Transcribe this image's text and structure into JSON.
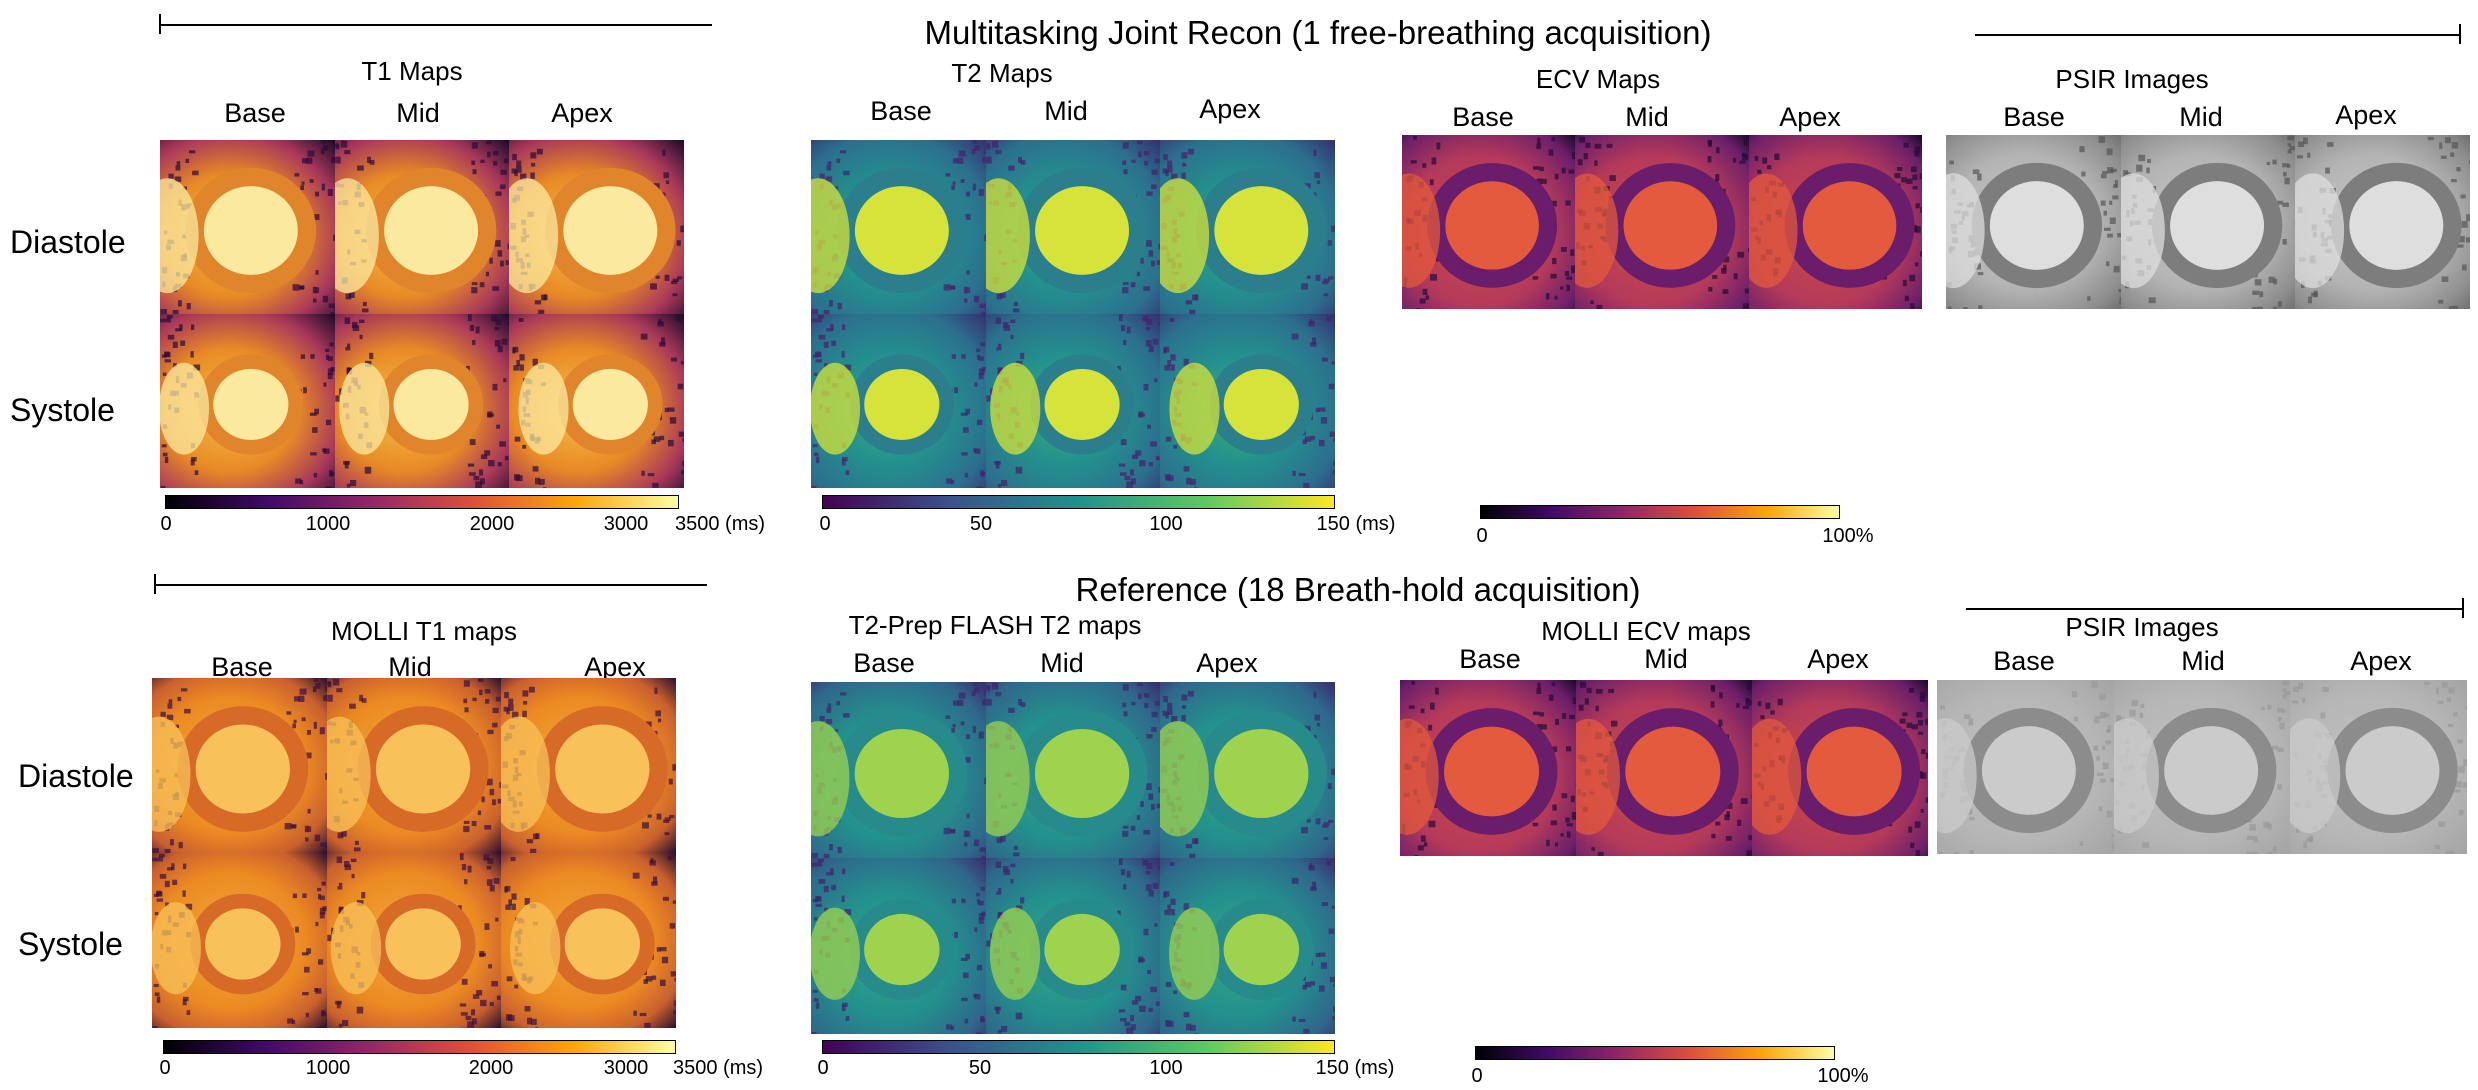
{
  "titles": {
    "top": "Multitasking Joint Recon (1 free-breathing acquisition)",
    "bottom": "Reference (18 Breath-hold acquisition)"
  },
  "panels": {
    "t1": "T1 Maps",
    "t2": "T2 Maps",
    "ecv": "ECV Maps",
    "psir_top": "PSIR Images",
    "molli_t1": "MOLLI T1 maps",
    "flash_t2": "T2-Prep FLASH T2 maps",
    "molli_ecv": "MOLLI ECV maps",
    "psir_bottom": "PSIR Images"
  },
  "columns": {
    "base": "Base",
    "mid": "Mid",
    "apex": "Apex"
  },
  "rows": {
    "diastole": "Diastole",
    "systole": "Systole"
  },
  "colorbars": {
    "t1": {
      "ticks": [
        "0",
        "1000",
        "2000",
        "3000",
        "3500 (ms)"
      ],
      "colormap": "inferno"
    },
    "t2": {
      "ticks": [
        "0",
        "50",
        "100",
        "150 (ms)"
      ],
      "colormap": "viridis"
    },
    "ecv": {
      "ticks": [
        "0",
        "100%"
      ],
      "colormap": "inferno"
    }
  },
  "colors": {
    "inferno": [
      "#000004",
      "#420a68",
      "#932667",
      "#dd513a",
      "#fca50a",
      "#fcffa4"
    ],
    "viridis": [
      "#440154",
      "#3b528b",
      "#21918c",
      "#5ec962",
      "#fde725"
    ]
  }
}
